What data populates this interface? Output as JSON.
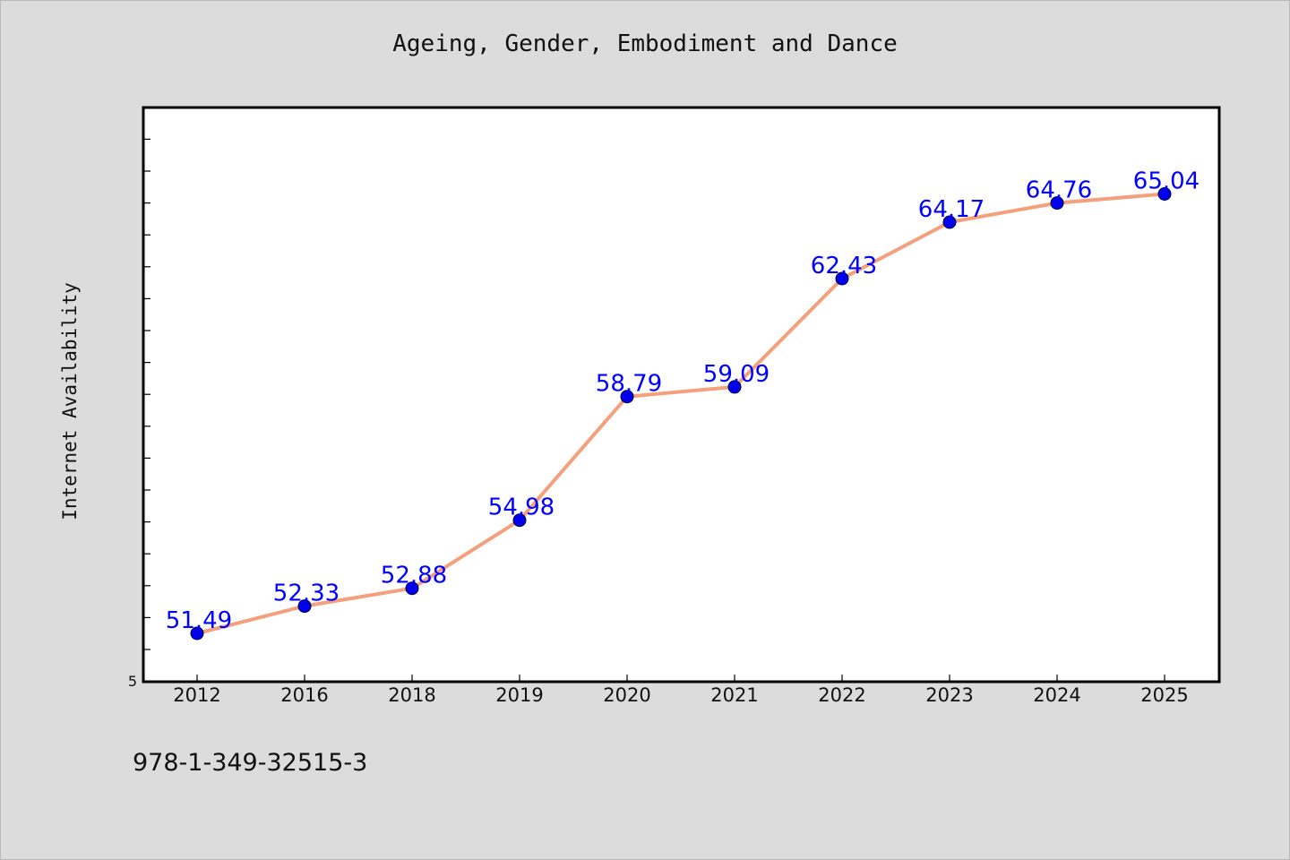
{
  "chart_data": {
    "type": "line",
    "title": "Ageing, Gender, Embodiment and Dance",
    "xlabel": "",
    "ylabel": "Internet Availability",
    "categories": [
      "2012",
      "2016",
      "2018",
      "2019",
      "2020",
      "2021",
      "2022",
      "2023",
      "2024",
      "2025"
    ],
    "series": [
      {
        "values": [
          51.49,
          52.33,
          52.88,
          54.98,
          58.79,
          59.09,
          62.43,
          64.17,
          64.76,
          65.04
        ]
      }
    ],
    "data_labels": [
      "51.49",
      "52.33",
      "52.88",
      "54.98",
      "58.79",
      "59.09",
      "62.43",
      "64.17",
      "64.76",
      "65.04"
    ],
    "y_tick_labels": [
      "5"
    ],
    "grid": false,
    "legend": "none",
    "colors": {
      "line": "#f4a07c",
      "marker": "#0000ee",
      "label": "#0000ff",
      "plot_bg": "#ffffff",
      "page_bg": "#dcdcdc"
    }
  },
  "footer": {
    "isbn": "978-1-349-32515-3"
  }
}
